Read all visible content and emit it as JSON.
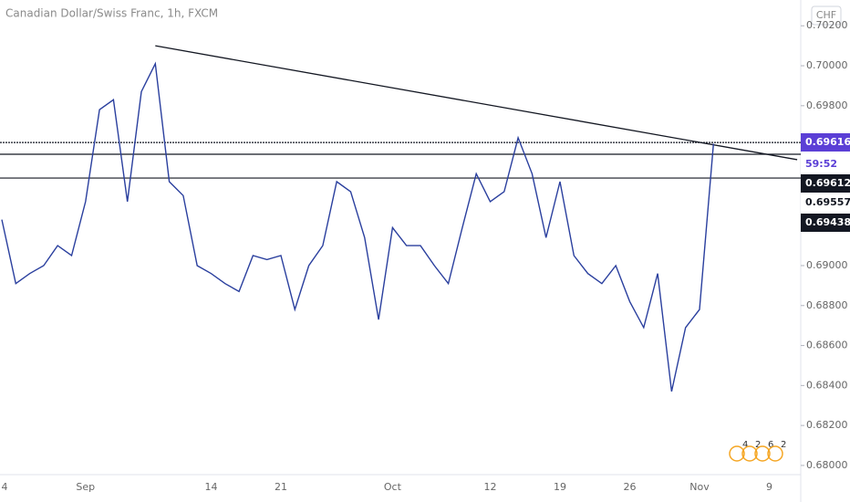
{
  "chart_data": {
    "type": "line",
    "title": "Canadian Dollar/Swiss Franc, 1h, FXCM",
    "currency_badge": "CHF",
    "categories": [
      "4",
      null,
      null,
      null,
      null,
      null,
      "Sep",
      null,
      null,
      null,
      null,
      null,
      null,
      null,
      null,
      "14",
      null,
      null,
      null,
      null,
      "21",
      null,
      null,
      null,
      null,
      null,
      null,
      null,
      "Oct",
      null,
      null,
      null,
      null,
      null,
      null,
      "12",
      null,
      null,
      null,
      null,
      "19",
      null,
      null,
      null,
      null,
      "26",
      null,
      null,
      null,
      null,
      "Nov",
      null,
      null,
      null,
      null,
      "9"
    ],
    "series": [
      {
        "color": "#2a3f9e",
        "values": [
          0.6923,
          0.6891,
          0.6896,
          0.69,
          0.691,
          0.6905,
          0.6932,
          0.6978,
          0.6983,
          0.6932,
          0.6987,
          0.7001,
          0.6942,
          0.6935,
          0.69,
          0.6896,
          0.6891,
          0.6887,
          0.6905,
          0.6903,
          0.6905,
          0.6878,
          0.69,
          0.691,
          0.6942,
          0.6937,
          0.6914,
          0.6873,
          0.6919,
          0.691,
          0.691,
          0.69,
          0.6891,
          0.6919,
          0.6946,
          0.6932,
          0.6937,
          0.6964,
          0.6946,
          0.6914,
          0.6942,
          0.6905,
          0.6896,
          0.6891,
          0.69,
          0.6882,
          0.6869,
          0.6896,
          0.6837,
          0.6869,
          0.6878,
          0.6961,
          null,
          null,
          null,
          null
        ]
      }
    ],
    "ylim": [
      0.67954,
      0.70329
    ],
    "yticks": [
      {
        "value": 0.702,
        "label": "0.70200"
      },
      {
        "value": 0.7,
        "label": "0.70000"
      },
      {
        "value": 0.698,
        "label": "0.69800"
      },
      {
        "value": 0.69,
        "label": "0.69000"
      },
      {
        "value": 0.688,
        "label": "0.68800"
      },
      {
        "value": 0.686,
        "label": "0.68600"
      },
      {
        "value": 0.684,
        "label": "0.68400"
      },
      {
        "value": 0.682,
        "label": "0.68200"
      },
      {
        "value": 0.68,
        "label": "0.68000"
      }
    ],
    "grid": false,
    "levels": [
      0.69616,
      0.69557,
      0.69438
    ],
    "current_price": 0.69612,
    "countdown": "59:52",
    "trendline": {
      "x": [
        11,
        57
      ],
      "values": [
        0.701,
        0.6953
      ]
    },
    "indicator_counts": [
      "4",
      "2",
      "6",
      "2"
    ]
  }
}
